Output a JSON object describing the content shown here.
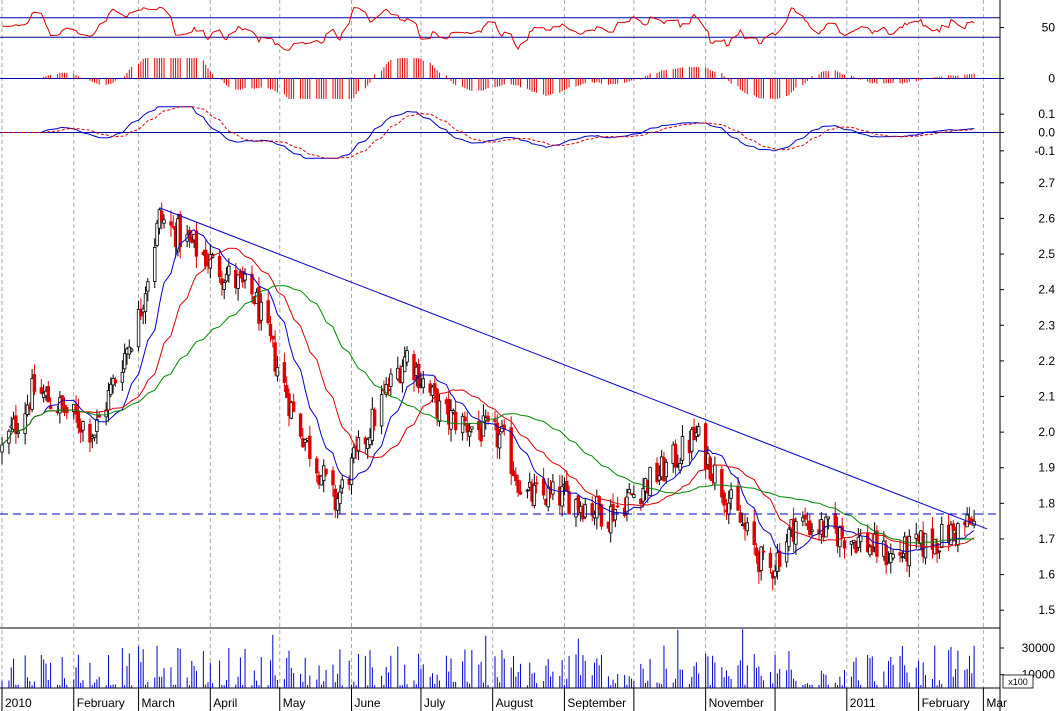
{
  "chart_data": [
    {
      "panel": "rsi",
      "type": "line",
      "ylim": [
        25,
        75
      ],
      "y_ticks": [
        "50"
      ],
      "reference_levels": [
        60,
        40
      ],
      "colors": {
        "line": "#dd0000",
        "reference": "#0000aa"
      }
    },
    {
      "panel": "momentum-histogram",
      "type": "bar",
      "ylim": [
        -1,
        1
      ],
      "y_ticks": [
        "0"
      ],
      "colors": {
        "bars": "#dd0000",
        "zero": "#0000aa"
      }
    },
    {
      "panel": "macd",
      "type": "line",
      "ylim": [
        -0.15,
        0.15
      ],
      "y_ticks": [
        "0.1",
        "0.0",
        "-0.1"
      ],
      "colors": {
        "macd": "#0000cc",
        "signal": "#dd0000",
        "zero": "#0000aa"
      }
    },
    {
      "panel": "price",
      "type": "candlestick",
      "ylim": [
        1.45,
        2.75
      ],
      "y_ticks": [
        "2.7",
        "2.6",
        "2.5",
        "2.4",
        "2.3",
        "2.2",
        "2.1",
        "2.0",
        "1.9",
        "1.8",
        "1.7",
        "1.6",
        "1.5"
      ],
      "support_level": 1.77,
      "trendline": [
        {
          "x": "2010-03-10",
          "y": 2.63
        },
        {
          "x": "2011-02-22",
          "y": 1.75
        }
      ],
      "key_points": [
        {
          "x": "2010-01-01",
          "close": 1.95
        },
        {
          "x": "2010-01-15",
          "close": 2.12
        },
        {
          "x": "2010-02-10",
          "close": 2.0
        },
        {
          "x": "2010-03-01",
          "close": 2.32
        },
        {
          "x": "2010-03-10",
          "close": 2.6
        },
        {
          "x": "2010-04-01",
          "close": 2.48
        },
        {
          "x": "2010-04-20",
          "close": 2.38
        },
        {
          "x": "2010-05-07",
          "close": 2.05
        },
        {
          "x": "2010-05-25",
          "close": 1.8
        },
        {
          "x": "2010-06-15",
          "close": 2.1
        },
        {
          "x": "2010-06-25",
          "close": 2.22
        },
        {
          "x": "2010-07-10",
          "close": 2.05
        },
        {
          "x": "2010-08-05",
          "close": 1.98
        },
        {
          "x": "2010-08-15",
          "close": 1.82
        },
        {
          "x": "2010-09-01",
          "close": 1.82
        },
        {
          "x": "2010-09-20",
          "close": 1.77
        },
        {
          "x": "2010-10-15",
          "close": 1.9
        },
        {
          "x": "2010-10-28",
          "close": 1.99
        },
        {
          "x": "2010-11-10",
          "close": 1.82
        },
        {
          "x": "2010-11-28",
          "close": 1.6
        },
        {
          "x": "2010-12-10",
          "close": 1.75
        },
        {
          "x": "2011-01-05",
          "close": 1.7
        },
        {
          "x": "2011-01-20",
          "close": 1.65
        },
        {
          "x": "2011-02-10",
          "close": 1.7
        },
        {
          "x": "2011-02-22",
          "close": 1.74
        }
      ],
      "colors": {
        "up": "#000000",
        "down": "#dd0000",
        "ma_short": "#0000cc",
        "ma_mid": "#dd0000",
        "ma_long": "#008800",
        "trendline": "#0000cc",
        "support": "#0000cc"
      }
    },
    {
      "panel": "volume",
      "type": "bar",
      "ylim": [
        0,
        45000
      ],
      "y_ticks": [
        "30000",
        "10000"
      ],
      "unit_label": "x100",
      "colors": {
        "bars": "#0000cc"
      }
    }
  ],
  "x_axis": {
    "labels": [
      "2010",
      "February",
      "March",
      "April",
      "May",
      "June",
      "July",
      "August",
      "September",
      "November",
      "2011",
      "February",
      "Mar"
    ],
    "start_date": "2010-01-01",
    "end_date": "2011-03-03"
  }
}
